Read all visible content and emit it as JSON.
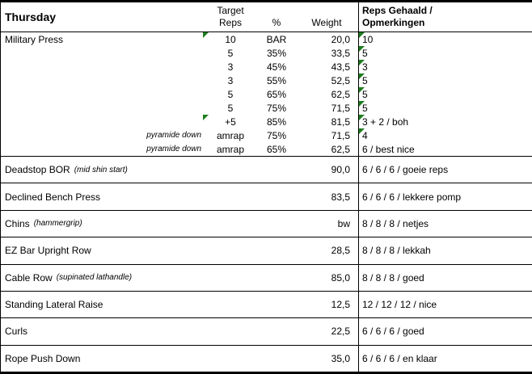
{
  "colors": {
    "text": "#000000",
    "border": "#000000",
    "comment_flag": "#1e7e1e",
    "background": "#ffffff"
  },
  "header": {
    "day": "Thursday",
    "target_reps_line1": "Target",
    "target_reps_line2": "Reps",
    "percent": "%",
    "weight": "Weight",
    "result_line1": "Reps Gehaald /",
    "result_line2": "Opmerkingen"
  },
  "main_exercise": {
    "name": "Military Press",
    "sets": [
      {
        "prefix": "",
        "target_reps": "10",
        "percent": "BAR",
        "weight": "20,0",
        "result": "10"
      },
      {
        "prefix": "",
        "target_reps": "5",
        "percent": "35%",
        "weight": "33,5",
        "result": "5"
      },
      {
        "prefix": "",
        "target_reps": "3",
        "percent": "45%",
        "weight": "43,5",
        "result": "3"
      },
      {
        "prefix": "",
        "target_reps": "3",
        "percent": "55%",
        "weight": "52,5",
        "result": "5"
      },
      {
        "prefix": "",
        "target_reps": "5",
        "percent": "65%",
        "weight": "62,5",
        "result": "5"
      },
      {
        "prefix": "",
        "target_reps": "5",
        "percent": "75%",
        "weight": "71,5",
        "result": "5"
      },
      {
        "prefix": "",
        "target_reps": "+5",
        "percent": "85%",
        "weight": "81,5",
        "result": "3 + 2 / boh"
      },
      {
        "prefix": "pyramide down",
        "target_reps": "amrap",
        "percent": "75%",
        "weight": "71,5",
        "result": "4"
      },
      {
        "prefix": "pyramide down",
        "target_reps": "amrap",
        "percent": "65%",
        "weight": "62,5",
        "result": "6 / best nice"
      }
    ]
  },
  "exercises": [
    {
      "name": "Deadstop BOR",
      "note": "(mid shin start)",
      "weight": "90,0",
      "result": "6 / 6 / 6 / goeie reps"
    },
    {
      "name": "Declined Bench Press",
      "note": "",
      "weight": "83,5",
      "result": "6 / 6 / 6 / lekkere pomp"
    },
    {
      "name": "Chins",
      "note": "(hammergrip)",
      "weight": "bw",
      "result": "8 / 8 / 8 / netjes"
    },
    {
      "name": "EZ Bar Upright Row",
      "note": "",
      "weight": "28,5",
      "result": "8 / 8 / 8 / lekkah"
    },
    {
      "name": "Cable Row",
      "note": "(supinated lathandle)",
      "weight": "85,0",
      "result": "8 / 8 / 8 / goed"
    },
    {
      "name": "Standing Lateral Raise",
      "note": "",
      "weight": "12,5",
      "result": "12 / 12 / 12 / nice"
    },
    {
      "name": "Curls",
      "note": "",
      "weight": "22,5",
      "result": "6 / 6 / 6 / goed"
    },
    {
      "name": "Rope Push Down",
      "note": "",
      "weight": "35,0",
      "result": "6 / 6 / 6 / en klaar"
    }
  ]
}
